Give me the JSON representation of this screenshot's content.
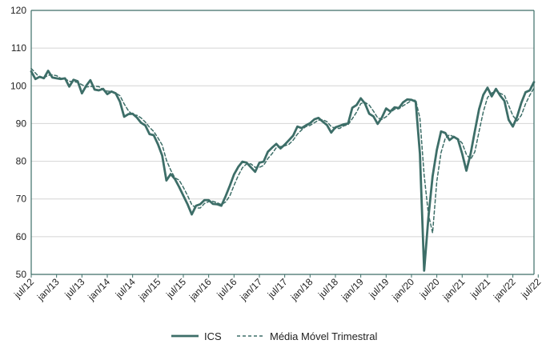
{
  "chart_data": {
    "type": "line",
    "title": "",
    "xlabel": "",
    "ylabel": "",
    "ylim": [
      50,
      120
    ],
    "yticks": [
      50,
      60,
      70,
      80,
      90,
      100,
      110,
      120
    ],
    "grid": "horizontal",
    "legend_position": "bottom-center",
    "x_tick_labels": [
      "jul/12",
      "jan/13",
      "jul/13",
      "jan/14",
      "jul/14",
      "jan/15",
      "jul/15",
      "jan/16",
      "jul/16",
      "jan/17",
      "jul/17",
      "jan/18",
      "jul/18",
      "jan/19",
      "jul/19",
      "jan/20",
      "jul/20",
      "jan/21",
      "jul/21",
      "jan/22",
      "jul/22"
    ],
    "colors": {
      "series": "#3d6e68",
      "grid": "#d4d4d4",
      "axis": "#3d6e68"
    },
    "series": [
      {
        "name": "ICS",
        "style": "solid",
        "values": [
          103.8,
          101.8,
          102.4,
          102.0,
          104.0,
          102.2,
          102.0,
          101.8,
          102.0,
          99.8,
          101.6,
          101.2,
          98.0,
          100.0,
          101.5,
          99.0,
          98.8,
          99.2,
          97.8,
          98.5,
          98.0,
          95.8,
          91.8,
          92.5,
          92.6,
          91.6,
          90.2,
          89.5,
          87.2,
          86.9,
          84.5,
          81.5,
          74.9,
          76.6,
          75.3,
          73.2,
          70.9,
          68.6,
          65.9,
          68.2,
          68.6,
          69.7,
          69.7,
          68.7,
          68.6,
          68.2,
          70.7,
          73.5,
          76.5,
          78.5,
          79.9,
          79.6,
          78.4,
          77.2,
          79.6,
          79.9,
          82.5,
          83.6,
          84.6,
          83.4,
          84.4,
          85.6,
          86.8,
          89.2,
          88.8,
          89.5,
          90.1,
          91.1,
          91.5,
          90.5,
          89.6,
          87.6,
          89.0,
          89.4,
          89.8,
          90.0,
          94.2,
          94.9,
          96.7,
          95.3,
          92.6,
          91.9,
          89.9,
          91.6,
          94.0,
          93.2,
          94.3,
          94.1,
          95.6,
          96.4,
          96.3,
          95.8,
          82.0,
          51.0,
          65.0,
          76.0,
          83.0,
          87.9,
          87.5,
          85.6,
          86.5,
          85.8,
          82.0,
          77.5,
          82.0,
          88.0,
          93.8,
          97.6,
          99.5,
          97.2,
          99.2,
          97.4,
          96.0,
          91.0,
          89.2,
          91.8,
          95.5,
          98.3,
          98.8,
          101.0
        ]
      },
      {
        "name": "Média Móvel Trimestral",
        "style": "dashed",
        "values": [
          104.6,
          103.4,
          102.2,
          102.1,
          102.8,
          102.9,
          102.7,
          102.0,
          101.9,
          101.2,
          101.1,
          100.9,
          100.3,
          99.7,
          99.8,
          99.9,
          99.8,
          99.0,
          98.6,
          98.5,
          98.1,
          97.4,
          95.2,
          93.4,
          92.3,
          92.2,
          91.5,
          90.4,
          89.0,
          87.9,
          86.2,
          84.3,
          80.3,
          77.7,
          75.6,
          75.0,
          73.1,
          70.9,
          68.5,
          67.6,
          67.6,
          68.8,
          69.3,
          69.4,
          69.0,
          68.5,
          69.2,
          70.8,
          73.6,
          76.2,
          78.3,
          79.3,
          79.3,
          78.4,
          78.4,
          78.9,
          80.7,
          82.0,
          83.6,
          83.9,
          84.1,
          84.5,
          85.6,
          87.2,
          88.3,
          89.2,
          89.5,
          90.2,
          90.9,
          91.0,
          90.5,
          89.2,
          88.7,
          88.7,
          89.4,
          89.7,
          91.3,
          93.0,
          95.3,
          95.6,
          94.9,
          93.3,
          91.5,
          91.1,
          91.8,
          92.9,
          93.8,
          93.9,
          94.7,
          95.4,
          96.1,
          96.2,
          91.4,
          76.3,
          66.0,
          61.0,
          74.7,
          82.3,
          86.1,
          87.0,
          86.5,
          86.0,
          84.8,
          81.8,
          80.5,
          82.5,
          87.9,
          93.1,
          96.9,
          98.1,
          98.7,
          98.0,
          97.5,
          94.8,
          92.1,
          90.7,
          92.2,
          95.2,
          97.5,
          99.4
        ]
      }
    ]
  }
}
